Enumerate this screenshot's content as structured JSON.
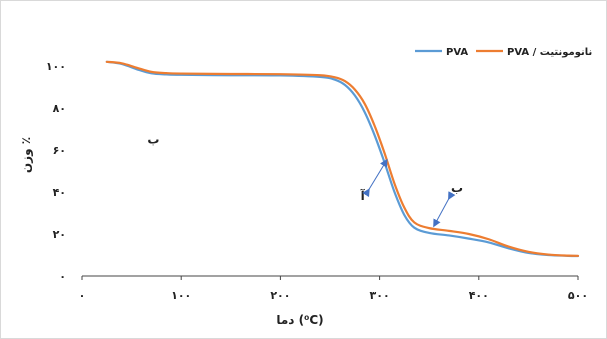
{
  "chart_data": {
    "type": "line",
    "title": "",
    "xlabel": "دما (⁰C)",
    "ylabel": "وزن ٪",
    "xlim": [
      0,
      500
    ],
    "ylim": [
      0,
      110
    ],
    "x_ticks": [
      {
        "value": 0,
        "label": "۰"
      },
      {
        "value": 100,
        "label": "۱۰۰"
      },
      {
        "value": 200,
        "label": "۲۰۰"
      },
      {
        "value": 300,
        "label": "۳۰۰"
      },
      {
        "value": 400,
        "label": "۴۰۰"
      },
      {
        "value": 500,
        "label": "۵۰۰"
      }
    ],
    "y_ticks": [
      {
        "value": 0,
        "label": "۰"
      },
      {
        "value": 20,
        "label": "۲۰"
      },
      {
        "value": 40,
        "label": "۴۰"
      },
      {
        "value": 60,
        "label": "۶۰"
      },
      {
        "value": 80,
        "label": "۸۰"
      },
      {
        "value": 100,
        "label": "۱۰۰"
      }
    ],
    "grid": false,
    "legend_position": "top-right",
    "series": [
      {
        "name": "PVA",
        "color": "#5b9bd5",
        "x": [
          25,
          40,
          55,
          70,
          85,
          100,
          150,
          200,
          240,
          255,
          265,
          275,
          285,
          295,
          305,
          315,
          325,
          335,
          350,
          370,
          390,
          410,
          430,
          450,
          470,
          490,
          500
        ],
        "y": [
          102,
          101,
          98.5,
          96.5,
          96,
          95.8,
          95.6,
          95.5,
          94.8,
          93.5,
          91,
          86,
          78,
          67,
          54,
          40,
          29,
          23,
          20.5,
          19.3,
          17.8,
          16,
          13.2,
          11,
          10,
          9.6,
          9.5
        ]
      },
      {
        "name": "PVA / نانومونتیت",
        "color": "#ed7d31",
        "x": [
          25,
          40,
          55,
          70,
          85,
          100,
          150,
          200,
          240,
          255,
          265,
          275,
          285,
          295,
          305,
          315,
          325,
          335,
          350,
          370,
          390,
          410,
          430,
          450,
          470,
          490,
          500
        ],
        "y": [
          102,
          101.3,
          99.2,
          97.2,
          96.6,
          96.4,
          96.2,
          96.1,
          95.6,
          94.6,
          92.8,
          88.8,
          82,
          71.5,
          58.5,
          44,
          32.5,
          25.5,
          22.8,
          21.5,
          20,
          17.5,
          14,
          11.5,
          10.2,
          9.7,
          9.6
        ]
      }
    ],
    "annotations": [
      {
        "label": "آ",
        "x": 283,
        "y": 38,
        "arrow_to": [
          307,
          55
        ]
      },
      {
        "label": "ب",
        "x": 378,
        "y": 42,
        "arrow_from": [
          370,
          37
        ],
        "arrow_to": [
          355,
          24
        ]
      },
      {
        "label": "ب",
        "x": 72,
        "y": 65
      }
    ]
  }
}
